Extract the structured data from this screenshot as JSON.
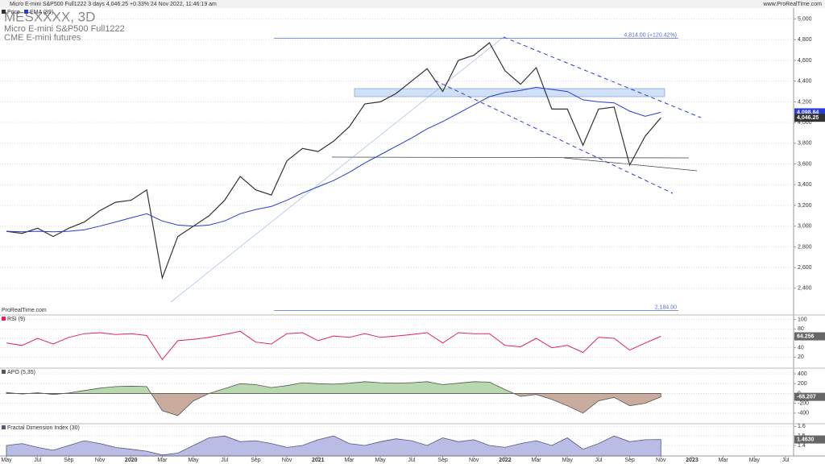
{
  "header": {
    "info": "Micro E-mini S&P500 Full1222 3 days 4,046.25 +0.33% 24 Nov 2022, 11:46:19 am",
    "site": "www.ProRealTime.com",
    "watermark": "ProRealTime.com"
  },
  "chart_data": [
    {
      "type": "line",
      "title": "MESXXXX, 3D",
      "subtitle": "Micro E-mini S&P500 Full1222",
      "exchange": "CME E-mini futures",
      "series": [
        {
          "name": "Price",
          "color": "#333333",
          "values": [
            2950,
            2930,
            2980,
            2900,
            2980,
            3040,
            3150,
            3230,
            3250,
            3350,
            2500,
            2900,
            3000,
            3100,
            3250,
            3480,
            3350,
            3300,
            3630,
            3750,
            3720,
            3820,
            3960,
            4180,
            4200,
            4280,
            4400,
            4520,
            4300,
            4600,
            4650,
            4770,
            4500,
            4370,
            4530,
            4130,
            4130,
            3780,
            4130,
            4150,
            3590,
            3870,
            4046.25,
            null,
            null,
            null,
            null,
            null,
            null,
            null,
            null,
            null
          ]
        },
        {
          "name": "EMA (89)",
          "color": "#2a3bd6",
          "values": [
            2950,
            2945,
            2950,
            2945,
            2950,
            2965,
            3000,
            3040,
            3080,
            3120,
            3050,
            3010,
            3000,
            3010,
            3050,
            3120,
            3160,
            3190,
            3250,
            3320,
            3380,
            3440,
            3520,
            3610,
            3690,
            3770,
            3850,
            3940,
            4010,
            4090,
            4170,
            4250,
            4290,
            4310,
            4340,
            4320,
            4300,
            4220,
            4200,
            4190,
            4110,
            4060,
            4098.84,
            null,
            null,
            null,
            null,
            null,
            null,
            null,
            null,
            null
          ]
        }
      ],
      "ylim": [
        2150,
        5090
      ],
      "yticks": [
        {
          "value": 2400,
          "label": "2,400"
        },
        {
          "value": 2600,
          "label": "2,600"
        },
        {
          "value": 2800,
          "label": "2,800"
        },
        {
          "value": 3000,
          "label": "3,000"
        },
        {
          "value": 3200,
          "label": "3,200"
        },
        {
          "value": 3400,
          "label": "3,400"
        },
        {
          "value": 3600,
          "label": "3,600"
        },
        {
          "value": 3800,
          "label": "3,800"
        },
        {
          "value": 4000,
          "label": "4,000"
        },
        {
          "value": 4200,
          "label": "4,200"
        },
        {
          "value": 4400,
          "label": "4,400"
        },
        {
          "value": 4600,
          "label": "4,600"
        },
        {
          "value": 4800,
          "label": "4,800"
        },
        {
          "value": 5000,
          "label": "5,000"
        }
      ],
      "last_price": {
        "value": 4046.25,
        "label": "4,046.25"
      },
      "ema_label": {
        "value": 4098.84,
        "label": "4,098.84"
      },
      "high_line": {
        "value": 4814,
        "label": "4,814.00 (+120.42%)"
      },
      "low_line": {
        "value": 2184,
        "label": "2,184.00"
      }
    },
    {
      "type": "line",
      "series": [
        {
          "name": "RSI (9)",
          "color": "#e0206a",
          "values": [
            50,
            45,
            60,
            48,
            62,
            70,
            72,
            68,
            70,
            66,
            15,
            55,
            58,
            62,
            68,
            75,
            52,
            48,
            70,
            72,
            55,
            65,
            62,
            70,
            62,
            65,
            68,
            72,
            50,
            72,
            70,
            70,
            45,
            42,
            60,
            40,
            45,
            30,
            62,
            60,
            35,
            50,
            64.256,
            null,
            null,
            null,
            null,
            null,
            null,
            null,
            null,
            null
          ]
        }
      ],
      "ylim": [
        0,
        108
      ],
      "yticks": [
        20,
        40,
        60,
        80,
        100
      ],
      "last": 64.256
    },
    {
      "type": "area",
      "series": [
        {
          "name": "APO (5,35)",
          "color": "#555555",
          "values": [
            20,
            -10,
            15,
            -20,
            10,
            60,
            110,
            140,
            150,
            140,
            -350,
            -450,
            -150,
            0,
            100,
            200,
            180,
            120,
            160,
            220,
            200,
            190,
            210,
            240,
            220,
            210,
            220,
            240,
            180,
            210,
            240,
            230,
            80,
            -60,
            -20,
            -120,
            -250,
            -400,
            -150,
            -80,
            -250,
            -200,
            -68.207,
            null,
            null,
            null,
            null,
            null,
            null,
            null,
            null,
            null
          ]
        }
      ],
      "ylim": [
        -600,
        500
      ],
      "yticks": [
        -400,
        -200,
        0,
        200,
        400
      ],
      "last": -68.207,
      "up_color": "#b9d8ae",
      "down_color": "#c9ac9e"
    },
    {
      "type": "area",
      "series": [
        {
          "name": "Fractal Dimension Index (30)",
          "color": "#555577",
          "values": [
            1.4,
            1.42,
            1.38,
            1.35,
            1.4,
            1.45,
            1.42,
            1.38,
            1.36,
            1.34,
            1.3,
            1.32,
            1.4,
            1.48,
            1.5,
            1.44,
            1.45,
            1.42,
            1.38,
            1.4,
            1.46,
            1.5,
            1.42,
            1.4,
            1.44,
            1.47,
            1.45,
            1.4,
            1.48,
            1.44,
            1.46,
            1.4,
            1.38,
            1.42,
            1.45,
            1.4,
            1.48,
            1.36,
            1.42,
            1.5,
            1.44,
            1.46,
            1.463,
            null,
            null,
            null,
            null,
            null,
            null,
            null,
            null,
            null
          ]
        }
      ],
      "ylim": [
        1.29,
        1.62
      ],
      "yticks": [
        1.4,
        1.5,
        1.6
      ],
      "last": {
        "value": 1.463,
        "label": "1.4630"
      },
      "fill_color": "#b9bde6",
      "categories": [
        "May",
        null,
        "Jul",
        null,
        "Sep",
        null,
        "Nov",
        null,
        "2020",
        null,
        "Mar",
        null,
        "May",
        null,
        "Jul",
        null,
        "Sep",
        null,
        "Nov",
        null,
        "2021",
        null,
        "Mar",
        null,
        "May",
        null,
        "Jul",
        null,
        "Sep",
        null,
        "Nov",
        null,
        "2022",
        null,
        "Mar",
        null,
        "May",
        null,
        "Jul",
        null,
        "Sep",
        null,
        "Nov",
        null,
        "2023",
        null,
        "Mar",
        null,
        "May",
        null,
        "Jul",
        null
      ]
    }
  ]
}
